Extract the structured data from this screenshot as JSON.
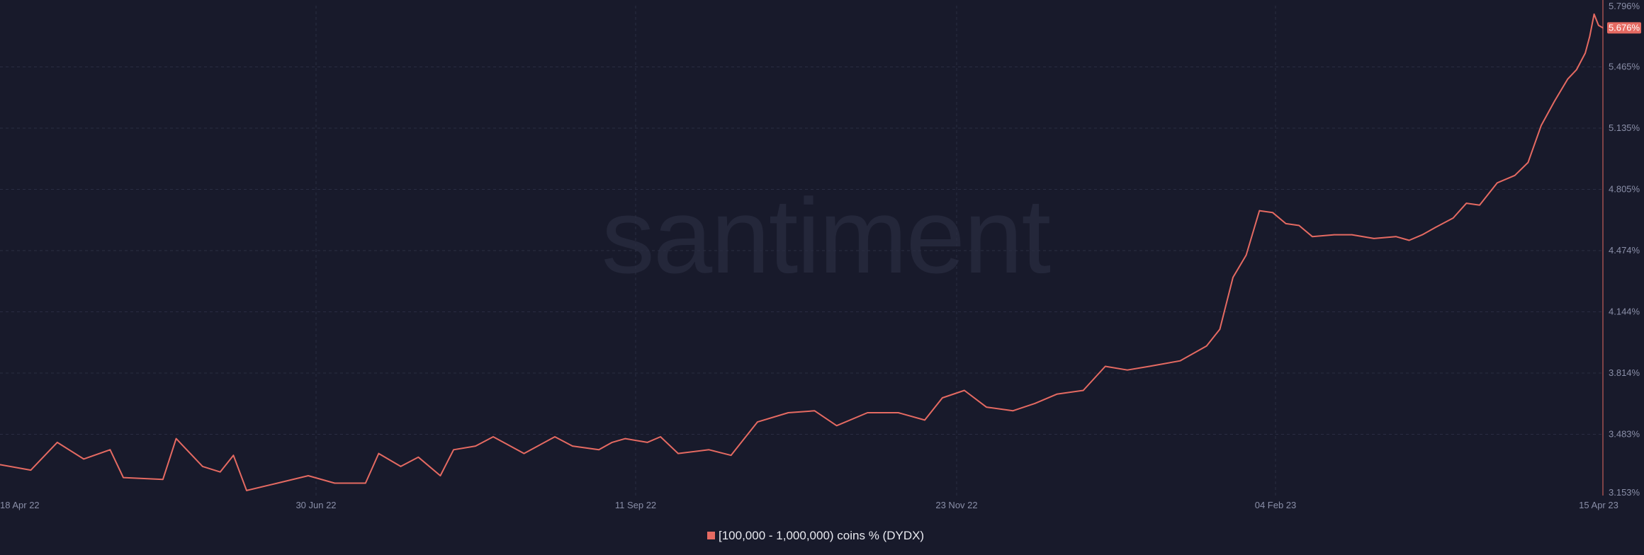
{
  "watermark": "santiment",
  "colors": {
    "background": "#181a2b",
    "series": "#e56a62",
    "grid": "#2a2d42",
    "axis_text": "#8a8fa8",
    "watermark": "#24273a"
  },
  "chart_data": {
    "type": "line",
    "title": "",
    "xlabel": "",
    "ylabel": "",
    "grid": true,
    "legend_position": "bottom-center",
    "x_tick_labels": [
      "18 Apr 22",
      "30 Jun 22",
      "11 Sep 22",
      "23 Nov 22",
      "04 Feb 23",
      "15 Apr 23"
    ],
    "x_range": [
      "2022-04-18",
      "2023-04-17"
    ],
    "y_range": [
      3.153,
      5.796
    ],
    "y_tick_labels": [
      "3.153%",
      "3.483%",
      "3.814%",
      "4.144%",
      "4.474%",
      "4.805%",
      "5.135%",
      "5.465%",
      "5.796%"
    ],
    "last_value_label": "5.676%",
    "series": [
      {
        "name": "[100,000 - 1,000,000) coins % (DYDX)",
        "color": "#e56a62",
        "points": [
          [
            "2022-04-18",
            3.32
          ],
          [
            "2022-04-25",
            3.29
          ],
          [
            "2022-05-01",
            3.44
          ],
          [
            "2022-05-07",
            3.35
          ],
          [
            "2022-05-13",
            3.4
          ],
          [
            "2022-05-16",
            3.25
          ],
          [
            "2022-05-25",
            3.24
          ],
          [
            "2022-05-28",
            3.46
          ],
          [
            "2022-06-03",
            3.31
          ],
          [
            "2022-06-07",
            3.28
          ],
          [
            "2022-06-10",
            3.37
          ],
          [
            "2022-06-13",
            3.18
          ],
          [
            "2022-06-20",
            3.22
          ],
          [
            "2022-06-27",
            3.26
          ],
          [
            "2022-07-03",
            3.22
          ],
          [
            "2022-07-10",
            3.22
          ],
          [
            "2022-07-13",
            3.38
          ],
          [
            "2022-07-18",
            3.31
          ],
          [
            "2022-07-22",
            3.36
          ],
          [
            "2022-07-27",
            3.26
          ],
          [
            "2022-07-30",
            3.4
          ],
          [
            "2022-08-04",
            3.42
          ],
          [
            "2022-08-08",
            3.47
          ],
          [
            "2022-08-15",
            3.38
          ],
          [
            "2022-08-22",
            3.47
          ],
          [
            "2022-08-26",
            3.42
          ],
          [
            "2022-09-01",
            3.4
          ],
          [
            "2022-09-04",
            3.44
          ],
          [
            "2022-09-07",
            3.46
          ],
          [
            "2022-09-12",
            3.44
          ],
          [
            "2022-09-15",
            3.47
          ],
          [
            "2022-09-19",
            3.38
          ],
          [
            "2022-09-26",
            3.4
          ],
          [
            "2022-10-01",
            3.37
          ],
          [
            "2022-10-07",
            3.55
          ],
          [
            "2022-10-14",
            3.6
          ],
          [
            "2022-10-20",
            3.61
          ],
          [
            "2022-10-25",
            3.53
          ],
          [
            "2022-11-01",
            3.6
          ],
          [
            "2022-11-08",
            3.6
          ],
          [
            "2022-11-14",
            3.56
          ],
          [
            "2022-11-18",
            3.68
          ],
          [
            "2022-11-23",
            3.72
          ],
          [
            "2022-11-28",
            3.63
          ],
          [
            "2022-12-04",
            3.61
          ],
          [
            "2022-12-09",
            3.65
          ],
          [
            "2022-12-14",
            3.7
          ],
          [
            "2022-12-20",
            3.72
          ],
          [
            "2022-12-25",
            3.85
          ],
          [
            "2022-12-30",
            3.83
          ],
          [
            "2023-01-04",
            3.85
          ],
          [
            "2023-01-11",
            3.88
          ],
          [
            "2023-01-17",
            3.96
          ],
          [
            "2023-01-20",
            4.05
          ],
          [
            "2023-01-23",
            4.33
          ],
          [
            "2023-01-26",
            4.45
          ],
          [
            "2023-01-29",
            4.69
          ],
          [
            "2023-02-01",
            4.68
          ],
          [
            "2023-02-04",
            4.62
          ],
          [
            "2023-02-07",
            4.61
          ],
          [
            "2023-02-10",
            4.55
          ],
          [
            "2023-02-15",
            4.56
          ],
          [
            "2023-02-19",
            4.56
          ],
          [
            "2023-02-24",
            4.54
          ],
          [
            "2023-03-01",
            4.55
          ],
          [
            "2023-03-04",
            4.53
          ],
          [
            "2023-03-07",
            4.56
          ],
          [
            "2023-03-10",
            4.6
          ],
          [
            "2023-03-14",
            4.65
          ],
          [
            "2023-03-17",
            4.73
          ],
          [
            "2023-03-20",
            4.72
          ],
          [
            "2023-03-24",
            4.84
          ],
          [
            "2023-03-28",
            4.88
          ],
          [
            "2023-03-31",
            4.95
          ],
          [
            "2023-04-03",
            5.15
          ],
          [
            "2023-04-06",
            5.28
          ],
          [
            "2023-04-09",
            5.4
          ],
          [
            "2023-04-11",
            5.45
          ],
          [
            "2023-04-13",
            5.54
          ],
          [
            "2023-04-14",
            5.63
          ],
          [
            "2023-04-15",
            5.75
          ],
          [
            "2023-04-16",
            5.69
          ],
          [
            "2023-04-17",
            5.676
          ]
        ]
      }
    ]
  }
}
